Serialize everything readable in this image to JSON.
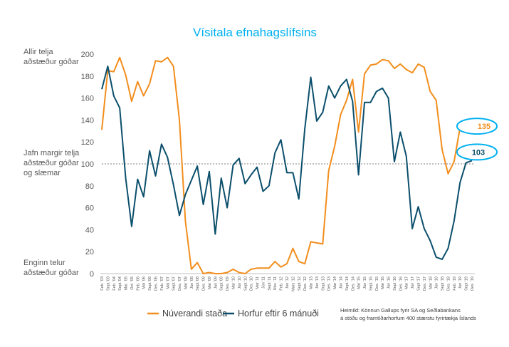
{
  "chart_data": {
    "type": "line",
    "title": "Vísitala efnahagslífsins",
    "ylim": [
      0,
      200
    ],
    "yticks": [
      0,
      20,
      40,
      60,
      80,
      100,
      120,
      140,
      160,
      180,
      200
    ],
    "reference_line": 100,
    "y_annotations": [
      {
        "value": 200,
        "lines": [
          "Allir telja",
          "aðstæður góðar"
        ]
      },
      {
        "value": 100,
        "lines": [
          "Jafn margir telja",
          "aðstæður góðar",
          "og slæmar"
        ]
      },
      {
        "value": 0,
        "lines": [
          "Enginn telur",
          "aðstæður góðar"
        ]
      }
    ],
    "categories": [
      "Feb. '03",
      "Sept.'03",
      "Feb. '04",
      "Sept.'04",
      "Mar. '05",
      "Oct. '05",
      "Feb. '06",
      "Mai '06",
      "Sept.'06",
      "Des. '06",
      "Feb. '07",
      "Mai '07",
      "Sept.'07",
      "Des. '07",
      "Mar '08",
      "Jún '08",
      "Sept.'08",
      "Des. '08",
      "Mar '09",
      "Jún '09",
      "Sept.'09",
      "Des. '09",
      "Mar '10",
      "Jún '10",
      "Sept.'10",
      "Des. '10",
      "Mar '11",
      "Jún '11",
      "Sept.'11",
      "Nóv. '11",
      "Feb. '12",
      "Jún '12",
      "Mars '12",
      "Sept.'12",
      "Des. '12",
      "Mar '13",
      "Jún '13",
      "Sept.'13",
      "Des. '13",
      "Mar '14",
      "Jún '14",
      "Sept.'14",
      "Des. '14",
      "Mar '15",
      "Jún '15",
      "Sept.'15",
      "Des. '15",
      "Mar '16",
      "Jún '16",
      "Sept '16",
      "Des. '16",
      "Mar '17",
      "Jún '17",
      "Sept '17",
      "Des. '17",
      "Mar '18",
      "Jún '18",
      "Sept '18",
      "Des. '18",
      "Feb. '19",
      "Jún '19",
      "Sept '19",
      "Des. '19"
    ],
    "series": [
      {
        "name": "Núverandi staða",
        "color": "#f28e1e",
        "values": [
          131,
          185,
          184,
          197,
          181,
          157,
          175,
          162,
          173,
          194,
          193,
          197,
          189,
          140,
          48,
          4,
          10,
          0,
          1,
          0,
          0,
          1,
          4,
          1,
          0,
          4,
          5,
          5,
          5,
          11,
          6,
          9,
          23,
          11,
          9,
          29,
          28,
          27,
          94,
          116,
          145,
          158,
          177,
          129,
          182,
          190,
          191,
          195,
          194,
          187,
          191,
          186,
          183,
          191,
          188,
          166,
          158,
          113,
          91,
          102,
          133,
          135,
          135
        ]
      },
      {
        "name": "Horfur eftir 6 mánuði",
        "color": "#0b4f6c",
        "values": [
          168,
          189,
          162,
          151,
          87,
          43,
          86,
          70,
          112,
          89,
          118,
          106,
          81,
          53,
          72,
          85,
          98,
          63,
          93,
          36,
          87,
          60,
          99,
          105,
          82,
          90,
          97,
          75,
          80,
          110,
          122,
          92,
          92,
          68,
          132,
          179,
          139,
          147,
          171,
          160,
          171,
          177,
          157,
          90,
          156,
          156,
          166,
          169,
          160,
          102,
          129,
          107,
          41,
          61,
          41,
          30,
          15,
          13,
          23,
          48,
          83,
          101,
          103
        ]
      }
    ],
    "callouts": [
      {
        "series": 0,
        "value": 135,
        "label": "135"
      },
      {
        "series": 1,
        "value": 103,
        "label": "103"
      }
    ],
    "legend_position": "bottom",
    "source": [
      "Heimild: Könnun Gallups fyrir SA og Seðlabankans",
      "á stöðu og framtíðarhorfum 400 stærstu fyrirtækja Íslands"
    ]
  }
}
